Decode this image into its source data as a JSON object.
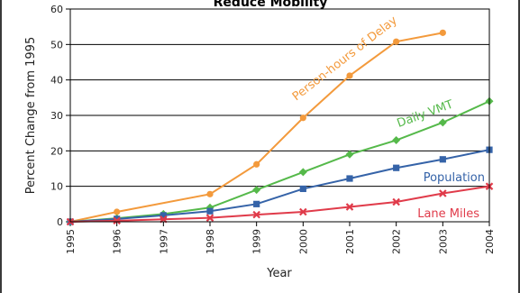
{
  "chart_data": {
    "type": "line",
    "title": "Reduce Mobility",
    "xlabel": "Year",
    "ylabel": "Percent Change from 1995",
    "x": [
      "1995",
      "1996",
      "1997",
      "1998",
      "1999",
      "2000",
      "2001",
      "2002",
      "2003",
      "2004"
    ],
    "ylim": [
      0,
      60
    ],
    "yticks": [
      0,
      10,
      20,
      30,
      40,
      50,
      60
    ],
    "grid": "horizontal",
    "series": [
      {
        "name": "Person-hours of Delay",
        "color": "#f39a3c",
        "marker": "circle",
        "values": [
          0,
          2.8,
          null,
          7.8,
          16.2,
          29.3,
          41.2,
          50.8,
          53.3,
          null
        ]
      },
      {
        "name": "Daily VMT",
        "color": "#55b94a",
        "marker": "diamond",
        "values": [
          0,
          1.0,
          2.2,
          4.0,
          9.0,
          14.0,
          19.0,
          23.0,
          28.0,
          34.0
        ]
      },
      {
        "name": "Population",
        "color": "#3563a8",
        "marker": "square",
        "values": [
          0,
          0.8,
          1.8,
          3.0,
          5.0,
          9.3,
          12.2,
          15.2,
          17.6,
          20.3
        ]
      },
      {
        "name": "Lane Miles",
        "color": "#e03b4a",
        "marker": "x",
        "values": [
          0,
          0.3,
          0.7,
          1.1,
          2.0,
          2.8,
          4.2,
          5.6,
          8.0,
          10.0
        ]
      }
    ]
  }
}
